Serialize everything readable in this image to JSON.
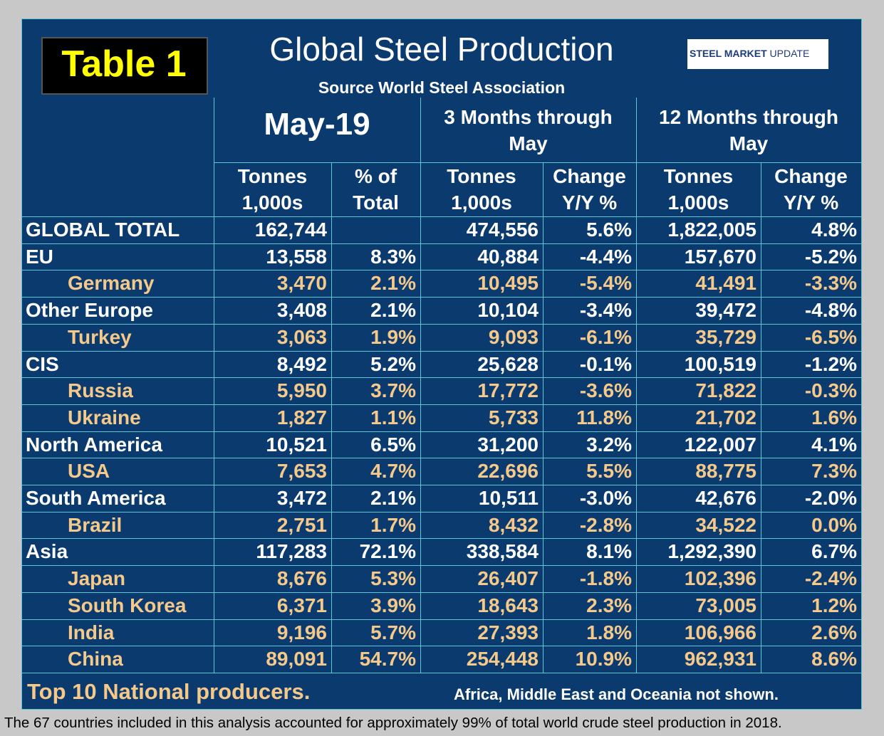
{
  "header": {
    "badge": "Table 1",
    "title": "Global Steel Production",
    "subtitle": "Source World Steel Association",
    "logo": {
      "brand": "STEEL MARKET",
      "suffix": "UPDATE"
    }
  },
  "table": {
    "groups": [
      "May-19",
      "3 Months through May",
      "12 Months through May"
    ],
    "columns": [
      [
        "Tonnes",
        "1,000s"
      ],
      [
        "% of",
        "Total"
      ],
      [
        "Tonnes",
        "1,000s"
      ],
      [
        "Change",
        "Y/Y %"
      ],
      [
        "Tonnes",
        "1,000s"
      ],
      [
        "Change",
        "Y/Y %"
      ]
    ],
    "rows": [
      {
        "label": "GLOBAL TOTAL",
        "sub": false,
        "cells": [
          "162,744",
          null,
          "474,556",
          "5.6%",
          "1,822,005",
          "4.8%"
        ]
      },
      {
        "label": "EU",
        "sub": false,
        "cells": [
          "13,558",
          "8.3%",
          "40,884",
          "-4.4%",
          "157,670",
          "-5.2%"
        ]
      },
      {
        "label": "Germany",
        "sub": true,
        "cells": [
          "3,470",
          "2.1%",
          "10,495",
          "-5.4%",
          "41,491",
          "-3.3%"
        ]
      },
      {
        "label": "Other Europe",
        "sub": false,
        "cells": [
          "3,408",
          "2.1%",
          "10,104",
          "-3.4%",
          "39,472",
          "-4.8%"
        ]
      },
      {
        "label": "Turkey",
        "sub": true,
        "cells": [
          "3,063",
          "1.9%",
          "9,093",
          "-6.1%",
          "35,729",
          "-6.5%"
        ]
      },
      {
        "label": "CIS",
        "sub": false,
        "cells": [
          "8,492",
          "5.2%",
          "25,628",
          "-0.1%",
          "100,519",
          "-1.2%"
        ]
      },
      {
        "label": "Russia",
        "sub": true,
        "cells": [
          "5,950",
          "3.7%",
          "17,772",
          "-3.6%",
          "71,822",
          "-0.3%"
        ]
      },
      {
        "label": "Ukraine",
        "sub": true,
        "cells": [
          "1,827",
          "1.1%",
          "5,733",
          "11.8%",
          "21,702",
          "1.6%"
        ]
      },
      {
        "label": "North America",
        "sub": false,
        "cells": [
          "10,521",
          "6.5%",
          "31,200",
          "3.2%",
          "122,007",
          "4.1%"
        ]
      },
      {
        "label": "USA",
        "sub": true,
        "cells": [
          "7,653",
          "4.7%",
          "22,696",
          "5.5%",
          "88,775",
          "7.3%"
        ]
      },
      {
        "label": "South America",
        "sub": false,
        "cells": [
          "3,472",
          "2.1%",
          "10,511",
          "-3.0%",
          "42,676",
          "-2.0%"
        ]
      },
      {
        "label": "Brazil",
        "sub": true,
        "cells": [
          "2,751",
          "1.7%",
          "8,432",
          "-2.8%",
          "34,522",
          "0.0%"
        ]
      },
      {
        "label": "Asia",
        "sub": false,
        "cells": [
          "117,283",
          "72.1%",
          "338,584",
          "8.1%",
          "1,292,390",
          "6.7%"
        ]
      },
      {
        "label": "Japan",
        "sub": true,
        "cells": [
          "8,676",
          "5.3%",
          "26,407",
          "-1.8%",
          "102,396",
          "-2.4%"
        ]
      },
      {
        "label": "South Korea",
        "sub": true,
        "cells": [
          "6,371",
          "3.9%",
          "18,643",
          "2.3%",
          "73,005",
          "1.2%"
        ]
      },
      {
        "label": "India",
        "sub": true,
        "cells": [
          "9,196",
          "5.7%",
          "27,393",
          "1.8%",
          "106,966",
          "2.6%"
        ]
      },
      {
        "label": "China",
        "sub": true,
        "cells": [
          "89,091",
          "54.7%",
          "254,448",
          "10.9%",
          "962,931",
          "8.6%"
        ]
      }
    ]
  },
  "footer": {
    "left": "Top 10 National producers.",
    "right": "Africa, Middle East and Oceania not shown.",
    "note": "The 67 countries included in this analysis accounted for approximately 99% of total world crude steel production in 2018."
  }
}
